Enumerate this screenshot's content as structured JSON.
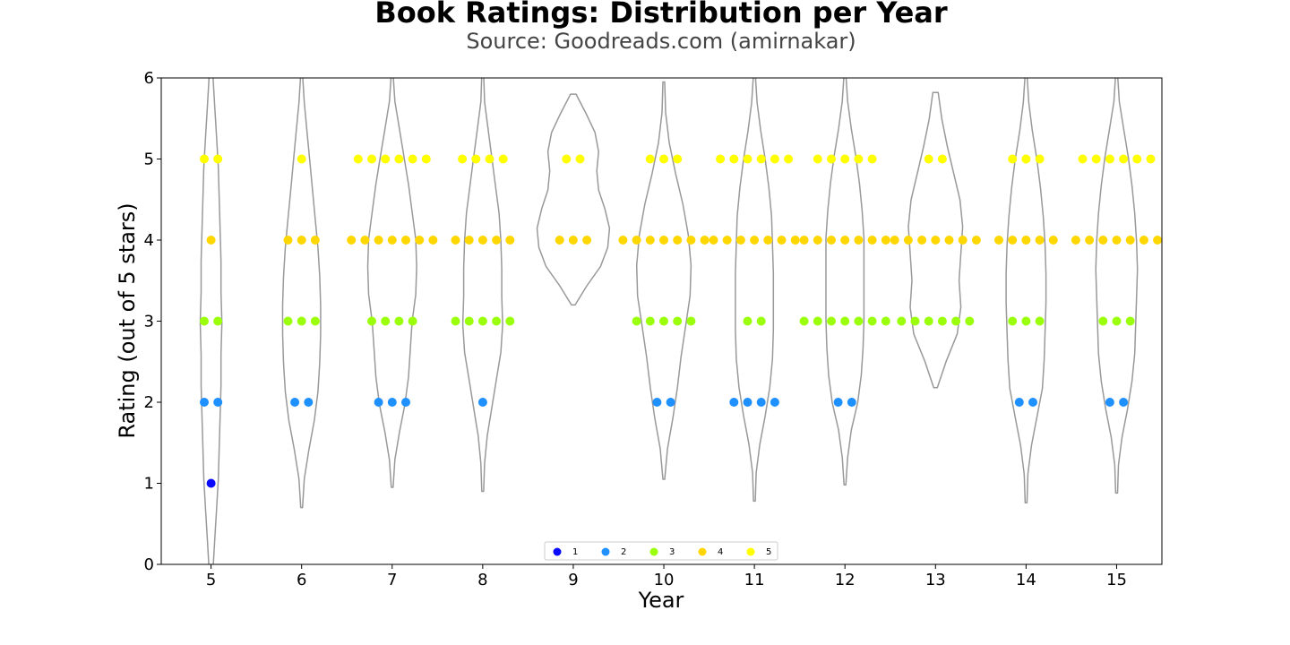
{
  "chart_data": {
    "type": "scatter",
    "title": "Book Ratings: Distribution per Year",
    "subtitle": "Source: Goodreads.com (amirnakar)",
    "xlabel": "Year",
    "ylabel": "Rating (out of 5 stars)",
    "xlim": [
      4.45,
      15.5
    ],
    "ylim": [
      0,
      6
    ],
    "x_ticks": [
      5,
      6,
      7,
      8,
      9,
      10,
      11,
      12,
      13,
      14,
      15
    ],
    "y_ticks": [
      0,
      1,
      2,
      3,
      4,
      5,
      6
    ],
    "grid": false,
    "legend_position": "bottom-center",
    "rating_colors": {
      "1": "#0a0aff",
      "2": "#1e90ff",
      "3": "#9bff0b",
      "4": "#ffd700",
      "5": "#ffff00"
    },
    "violin_color": "#999999",
    "legend": [
      {
        "label": "1",
        "rating": 1
      },
      {
        "label": "2",
        "rating": 2
      },
      {
        "label": "3",
        "rating": 3
      },
      {
        "label": "4",
        "rating": 4
      },
      {
        "label": "5",
        "rating": 5
      }
    ],
    "years": [
      {
        "year": 5,
        "counts": {
          "1": 1,
          "2": 2,
          "3": 2,
          "4": 1,
          "5": 2
        },
        "violin": {
          "min": -0.1,
          "max": 6.05,
          "widths": [
            0.02,
            0.04,
            0.06,
            0.08,
            0.09,
            0.1,
            0.11,
            0.11,
            0.12,
            0.11,
            0.11,
            0.1,
            0.09,
            0.08,
            0.06,
            0.04,
            0.02
          ]
        }
      },
      {
        "year": 6,
        "counts": {
          "1": 0,
          "2": 2,
          "3": 3,
          "4": 3,
          "5": 1
        },
        "violin": {
          "min": 0.7,
          "max": 6.05,
          "widths": [
            0.01,
            0.03,
            0.08,
            0.14,
            0.18,
            0.2,
            0.21,
            0.21,
            0.2,
            0.18,
            0.15,
            0.12,
            0.09,
            0.06,
            0.03,
            0.01
          ]
        }
      },
      {
        "year": 7,
        "counts": {
          "1": 0,
          "2": 3,
          "3": 4,
          "4": 7,
          "5": 6
        },
        "violin": {
          "min": 0.95,
          "max": 6.05,
          "widths": [
            0.01,
            0.03,
            0.08,
            0.14,
            0.18,
            0.2,
            0.22,
            0.26,
            0.27,
            0.26,
            0.22,
            0.18,
            0.13,
            0.08,
            0.03,
            0.01
          ]
        }
      },
      {
        "year": 8,
        "counts": {
          "1": 0,
          "2": 1,
          "3": 5,
          "4": 5,
          "5": 4
        },
        "violin": {
          "min": 0.9,
          "max": 6.05,
          "widths": [
            0.01,
            0.02,
            0.05,
            0.1,
            0.15,
            0.2,
            0.22,
            0.21,
            0.21,
            0.2,
            0.18,
            0.14,
            0.1,
            0.06,
            0.02,
            0.01
          ]
        }
      },
      {
        "year": 9,
        "counts": {
          "1": 0,
          "2": 0,
          "3": 0,
          "4": 3,
          "5": 2
        },
        "violin": {
          "min": 3.2,
          "max": 5.8,
          "widths": [
            0.02,
            0.15,
            0.3,
            0.38,
            0.4,
            0.35,
            0.28,
            0.26,
            0.28,
            0.24,
            0.14,
            0.03
          ]
        }
      },
      {
        "year": 10,
        "counts": {
          "1": 0,
          "2": 2,
          "3": 5,
          "4": 7,
          "5": 3
        },
        "violin": {
          "min": 1.05,
          "max": 5.95,
          "widths": [
            0.01,
            0.04,
            0.1,
            0.15,
            0.19,
            0.24,
            0.29,
            0.3,
            0.27,
            0.21,
            0.13,
            0.06,
            0.02,
            0.01
          ]
        }
      },
      {
        "year": 11,
        "counts": {
          "1": 0,
          "2": 4,
          "3": 2,
          "4": 7,
          "5": 6
        },
        "violin": {
          "min": 0.78,
          "max": 6.05,
          "widths": [
            0.01,
            0.02,
            0.06,
            0.12,
            0.17,
            0.2,
            0.21,
            0.21,
            0.21,
            0.2,
            0.19,
            0.16,
            0.12,
            0.07,
            0.03,
            0.01
          ]
        }
      },
      {
        "year": 12,
        "counts": {
          "1": 0,
          "2": 2,
          "3": 7,
          "4": 7,
          "5": 5
        },
        "violin": {
          "min": 0.98,
          "max": 6.05,
          "widths": [
            0.01,
            0.03,
            0.07,
            0.14,
            0.18,
            0.2,
            0.21,
            0.21,
            0.21,
            0.21,
            0.19,
            0.16,
            0.12,
            0.07,
            0.03,
            0.01
          ]
        }
      },
      {
        "year": 13,
        "counts": {
          "1": 0,
          "2": 0,
          "3": 6,
          "4": 7,
          "5": 2
        },
        "violin": {
          "min": 2.18,
          "max": 5.82,
          "widths": [
            0.02,
            0.12,
            0.24,
            0.28,
            0.26,
            0.28,
            0.3,
            0.27,
            0.2,
            0.13,
            0.07,
            0.03
          ]
        }
      },
      {
        "year": 14,
        "counts": {
          "1": 0,
          "2": 2,
          "3": 3,
          "4": 5,
          "5": 3
        },
        "violin": {
          "min": 0.76,
          "max": 6.05,
          "widths": [
            0.01,
            0.02,
            0.06,
            0.12,
            0.18,
            0.2,
            0.21,
            0.22,
            0.22,
            0.21,
            0.19,
            0.16,
            0.12,
            0.07,
            0.03,
            0.01
          ]
        }
      },
      {
        "year": 15,
        "counts": {
          "1": 0,
          "2": 2,
          "3": 3,
          "4": 7,
          "5": 6
        },
        "violin": {
          "min": 0.88,
          "max": 6.05,
          "widths": [
            0.01,
            0.02,
            0.06,
            0.12,
            0.17,
            0.2,
            0.21,
            0.22,
            0.23,
            0.22,
            0.2,
            0.17,
            0.13,
            0.08,
            0.03,
            0.01
          ]
        }
      }
    ]
  }
}
